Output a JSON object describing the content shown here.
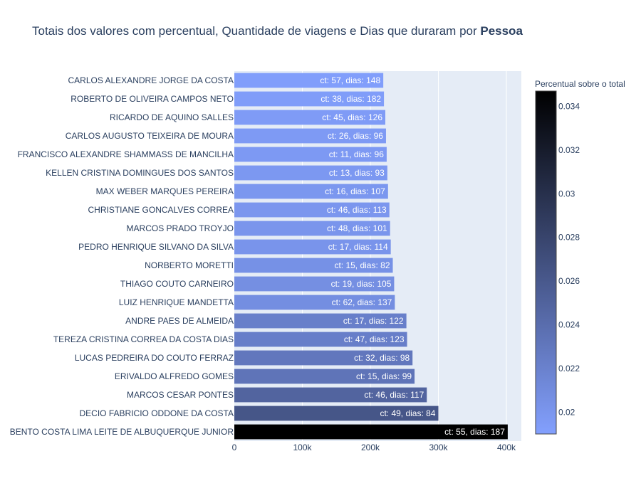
{
  "chart_data": {
    "type": "bar",
    "orientation": "horizontal",
    "title_prefix": "Totais dos valores com percentual, Quantidade de viagens e Dias que duraram por ",
    "title_bold": "Pessoa",
    "xlim": [
      0,
      422000
    ],
    "x_ticks": [
      0,
      100000,
      200000,
      300000,
      400000
    ],
    "x_tick_labels": [
      "0",
      "100k",
      "200k",
      "300k",
      "400k"
    ],
    "grid": true,
    "colorbar": {
      "title": "Percentual sobre o total",
      "range": [
        0.019,
        0.0347
      ],
      "ticks": [
        0.02,
        0.022,
        0.024,
        0.026,
        0.028,
        0.03,
        0.032,
        0.034
      ],
      "tick_labels": [
        "0.02",
        "0.022",
        "0.024",
        "0.026",
        "0.028",
        "0.03",
        "0.032",
        "0.034"
      ],
      "colorscale": [
        "#83a0fe",
        "#000000"
      ]
    },
    "bars": [
      {
        "name": "CARLOS ALEXANDRE JORGE DA COSTA",
        "value": 219000,
        "pct": 0.0192,
        "label": "ct: 57, dias: 148"
      },
      {
        "name": "ROBERTO DE OLIVEIRA CAMPOS NETO",
        "value": 220000,
        "pct": 0.0193,
        "label": "ct: 38, dias: 182"
      },
      {
        "name": "RICARDO DE AQUINO SALLES",
        "value": 222000,
        "pct": 0.0195,
        "label": "ct: 45, dias: 126"
      },
      {
        "name": "CARLOS AUGUSTO TEIXEIRA DE MOURA",
        "value": 223000,
        "pct": 0.0196,
        "label": "ct: 26, dias: 96"
      },
      {
        "name": "FRANCISCO ALEXANDRE SHAMMASS DE MANCILHA",
        "value": 224000,
        "pct": 0.0197,
        "label": "ct: 11, dias: 96"
      },
      {
        "name": "KELLEN CRISTINA DOMINGUES DOS SANTOS",
        "value": 225000,
        "pct": 0.0198,
        "label": "ct: 13, dias: 93"
      },
      {
        "name": "MAX WEBER MARQUES PEREIRA",
        "value": 226000,
        "pct": 0.0199,
        "label": "ct: 16, dias: 107"
      },
      {
        "name": "CHRISTIANE GONCALVES CORREA",
        "value": 228000,
        "pct": 0.02,
        "label": "ct: 46, dias: 113"
      },
      {
        "name": "MARCOS PRADO TROYJO",
        "value": 229000,
        "pct": 0.0201,
        "label": "ct: 48, dias: 101"
      },
      {
        "name": "PEDRO HENRIQUE SILVANO DA SILVA",
        "value": 230000,
        "pct": 0.0202,
        "label": "ct: 17, dias: 114"
      },
      {
        "name": "NORBERTO MORETTI",
        "value": 233000,
        "pct": 0.0205,
        "label": "ct: 15, dias: 82"
      },
      {
        "name": "THIAGO COUTO CARNEIRO",
        "value": 235000,
        "pct": 0.0207,
        "label": "ct: 19, dias: 105"
      },
      {
        "name": "LUIZ HENRIQUE MANDETTA",
        "value": 236000,
        "pct": 0.0208,
        "label": "ct: 62, dias: 137"
      },
      {
        "name": "ANDRE PAES DE ALMEIDA",
        "value": 253000,
        "pct": 0.0222,
        "label": "ct: 17, dias: 122"
      },
      {
        "name": "TEREZA CRISTINA CORREA DA COSTA DIAS",
        "value": 254000,
        "pct": 0.0223,
        "label": "ct: 47, dias: 123"
      },
      {
        "name": "LUCAS PEDREIRA DO COUTO FERRAZ",
        "value": 262000,
        "pct": 0.023,
        "label": "ct: 32, dias: 98"
      },
      {
        "name": "ERIVALDO ALFREDO GOMES",
        "value": 265000,
        "pct": 0.0233,
        "label": "ct: 15, dias: 99"
      },
      {
        "name": "MARCOS CESAR PONTES",
        "value": 283000,
        "pct": 0.0249,
        "label": "ct: 46, dias: 117"
      },
      {
        "name": "DECIO FABRICIO ODDONE DA COSTA",
        "value": 300000,
        "pct": 0.0263,
        "label": "ct: 49, dias: 84"
      },
      {
        "name": "BENTO COSTA LIMA LEITE DE ALBUQUERQUE JUNIOR",
        "value": 402000,
        "pct": 0.0347,
        "label": "ct: 55, dias: 187"
      }
    ]
  }
}
